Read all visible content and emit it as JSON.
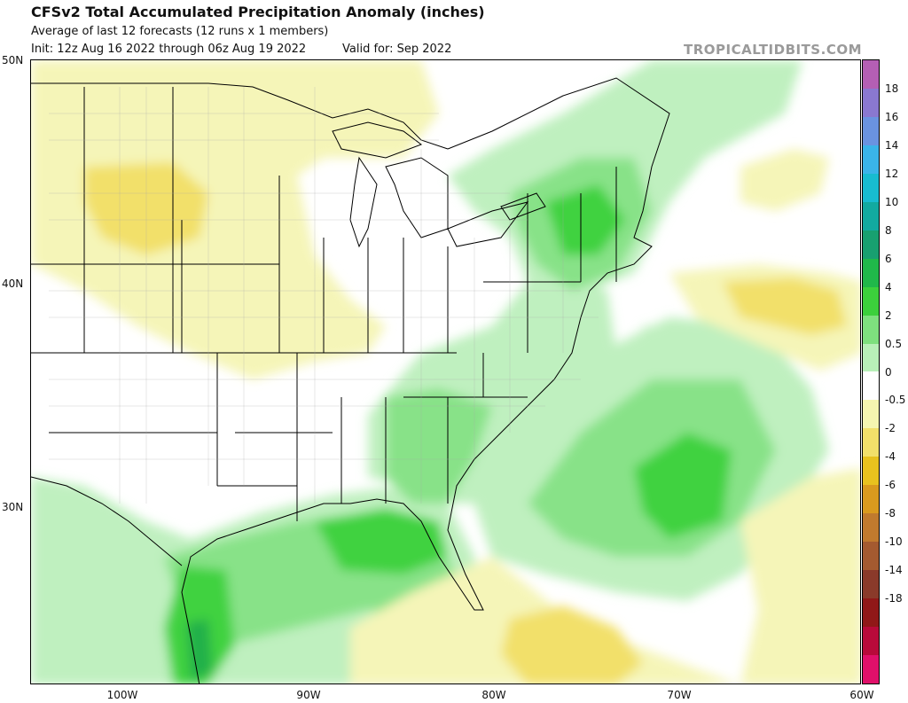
{
  "header": {
    "title": "CFSv2 Total Accumulated Precipitation Anomaly (inches)",
    "subtitle": "Average of last 12 forecasts (12 runs x 1 members)",
    "init": "Init: 12z Aug 16 2022 through 06z Aug 19 2022",
    "valid": "Valid for: Sep 2022",
    "credit": "TROPICALTIDBITS.COM"
  },
  "axes": {
    "lat_labels": [
      "50N",
      "40N",
      "30N"
    ],
    "lon_labels": [
      "100W",
      "90W",
      "80W",
      "70W",
      "60W"
    ]
  },
  "colorbar": {
    "labels": [
      "18",
      "16",
      "14",
      "12",
      "10",
      "8",
      "6",
      "4",
      "2",
      "0.5",
      "0",
      "-0.5",
      "-2",
      "-4",
      "-6",
      "-8",
      "-10",
      "-14",
      "-18"
    ],
    "colors": [
      "#b45fb4",
      "#8a78d0",
      "#6a93e0",
      "#3ab4e8",
      "#18bcd0",
      "#12aaa0",
      "#18a070",
      "#20b84a",
      "#3cd03c",
      "#7ee07e",
      "#b8f0b8",
      "#ffffff",
      "#f5f5b0",
      "#f2e06a",
      "#e8c21e",
      "#d99a1e",
      "#c07a2e",
      "#a45a30",
      "#8a3a2a",
      "#901818",
      "#b80a3a",
      "#e0106a"
    ]
  },
  "map": {
    "colors": {
      "dry_light": "#f5f5b8",
      "dry_med": "#f2e06a",
      "dry_strong": "#eacd2a",
      "wet_light": "#bff0bf",
      "wet_med": "#88e288",
      "wet_strong": "#3fd23f",
      "wet_heavy": "#22b04a",
      "wet_max": "#198a6a"
    }
  }
}
